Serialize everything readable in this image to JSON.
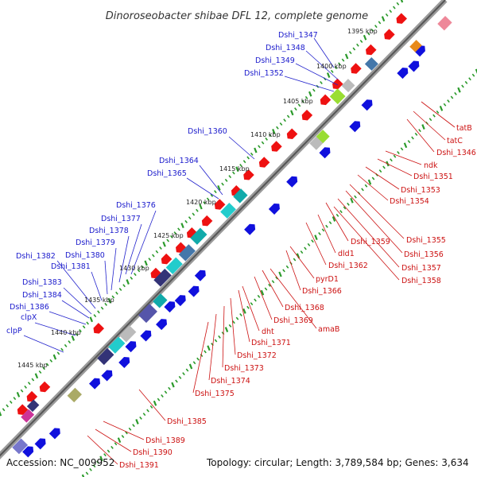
{
  "title": "Dinoroseobacter shibae DFL 12, complete genome",
  "footer": {
    "accession": "Accession: NC_009952",
    "summary": "Topology: circular; Length: 3,789,584 bp; Genes: 3,634"
  },
  "colors": {
    "backbone": "#888888",
    "tick_green": "#2a9a2a",
    "plus_strand": "#1010dd",
    "minus_strand": "#ee1111",
    "label_plus": "#1a1acc",
    "label_minus": "#cc1111"
  },
  "kbp_ticks": [
    "1395 kbp",
    "1400 kbp",
    "1405 kbp",
    "1410 kbp",
    "1415 kbp",
    "1420 kbp",
    "1425 kbp",
    "1430 kbp",
    "1435 kbp",
    "1440 kbp",
    "1445 kbp"
  ],
  "labels_plus": [
    "Dshi_1347",
    "Dshi_1348",
    "Dshi_1349",
    "Dshi_1352",
    "Dshi_1360",
    "Dshi_1364",
    "Dshi_1365",
    "Dshi_1376",
    "Dshi_1377",
    "Dshi_1378",
    "Dshi_1379",
    "Dshi_1380",
    "Dshi_1381",
    "Dshi_1382",
    "Dshi_1383",
    "Dshi_1384",
    "Dshi_1386",
    "clpX",
    "clpP"
  ],
  "labels_minus": [
    "tatB",
    "tatC",
    "Dshi_1346",
    "ndk",
    "Dshi_1351",
    "Dshi_1353",
    "Dshi_1354",
    "Dshi_1355",
    "Dshi_1356",
    "Dshi_1359",
    "Dshi_1357",
    "Dshi_1358",
    "dld1",
    "Dshi_1362",
    "pyrD1",
    "Dshi_1366",
    "Dshi_1368",
    "Dshi_1369",
    "amaB",
    "dht",
    "Dshi_1371",
    "Dshi_1372",
    "Dshi_1373",
    "Dshi_1374",
    "Dshi_1375",
    "Dshi_1385",
    "Dshi_1389",
    "Dshi_1390",
    "Dshi_1391"
  ]
}
